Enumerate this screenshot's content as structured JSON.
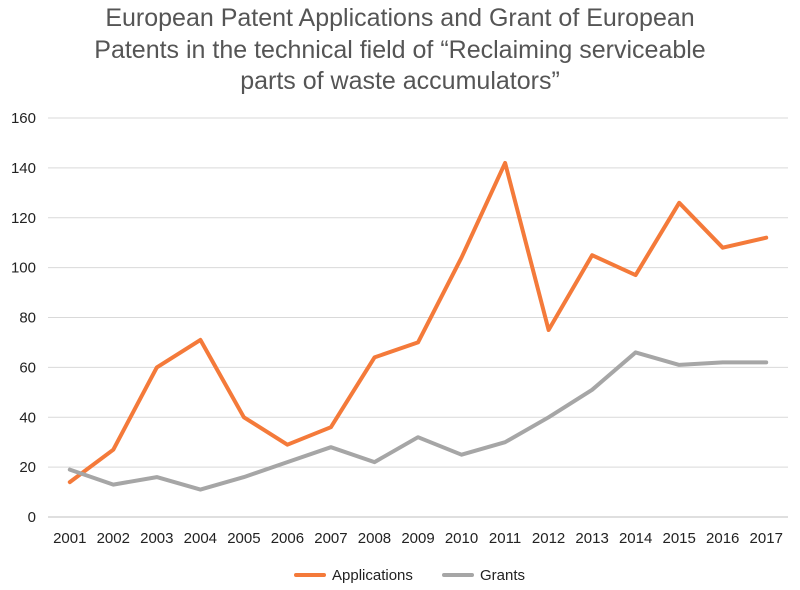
{
  "chart_data": {
    "type": "line",
    "title_lines": [
      "European Patent Applications and Grant of European",
      "Patents in the technical field of “Reclaiming serviceable",
      "parts of waste accumulators”"
    ],
    "categories": [
      "2001",
      "2002",
      "2003",
      "2004",
      "2005",
      "2006",
      "2007",
      "2008",
      "2009",
      "2010",
      "2011",
      "2012",
      "2013",
      "2014",
      "2015",
      "2016",
      "2017"
    ],
    "series": [
      {
        "name": "Applications",
        "color": "#f47a3a",
        "values": [
          14,
          27,
          60,
          71,
          40,
          29,
          36,
          64,
          70,
          104,
          142,
          75,
          105,
          97,
          126,
          108,
          112
        ]
      },
      {
        "name": "Grants",
        "color": "#a6a6a6",
        "values": [
          19,
          13,
          16,
          11,
          16,
          22,
          28,
          22,
          32,
          25,
          30,
          40,
          51,
          66,
          61,
          62,
          62
        ]
      }
    ],
    "ylim": [
      0,
      160
    ],
    "yticks": [
      "0",
      "20",
      "40",
      "60",
      "80",
      "100",
      "120",
      "140",
      "160"
    ],
    "grid": true,
    "legend_position": "bottom-center"
  }
}
